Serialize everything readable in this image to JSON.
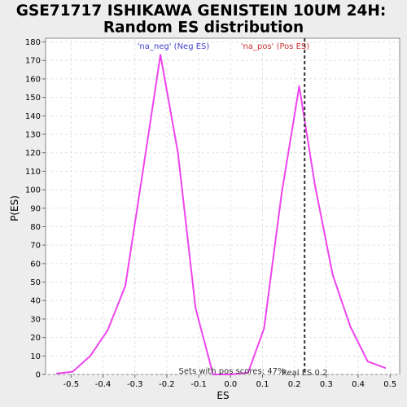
{
  "chart_data": {
    "type": "line",
    "title_line1": "GSE71717 ISHIKAWA GENISTEIN 10UM 24H:",
    "title_line2": "Random ES distribution",
    "xlabel": "ES",
    "ylabel": "P(ES)",
    "xlim": [
      -0.58,
      0.53
    ],
    "ylim": [
      0,
      182
    ],
    "xticks": [
      -0.5,
      -0.4,
      -0.3,
      -0.2,
      -0.1,
      0.0,
      0.1,
      0.2,
      0.3,
      0.4,
      0.5
    ],
    "xtick_labels": [
      "-0.5",
      "-0.4",
      "-0.3",
      "-0.2",
      "-0.1",
      "0.0",
      "0.1",
      "0.2",
      "0.3",
      "0.4",
      "0.5"
    ],
    "yticks": [
      0,
      10,
      20,
      30,
      40,
      50,
      60,
      70,
      80,
      90,
      100,
      110,
      120,
      130,
      140,
      150,
      160,
      170,
      180
    ],
    "ytick_labels": [
      "0",
      "10",
      "20",
      "30",
      "40",
      "50",
      "60",
      "70",
      "80",
      "90",
      "100",
      "110",
      "120",
      "130",
      "140",
      "150",
      "160",
      "170",
      "180"
    ],
    "grid": true,
    "legend": [
      {
        "label": "'na_neg' (Neg ES)",
        "color": "#4444cc"
      },
      {
        "label": "'na_pos' (Pos ES)",
        "color": "#cc3333"
      }
    ],
    "series": [
      {
        "color": "#ee44ee",
        "x": [
          -0.545,
          -0.495,
          -0.44,
          -0.385,
          -0.33,
          -0.275,
          -0.22,
          -0.165,
          -0.11,
          -0.055,
          0.0,
          0.055,
          0.105,
          0.16,
          0.215,
          0.265,
          0.32,
          0.375,
          0.43,
          0.485
        ],
        "y": [
          0.5,
          1.5,
          10,
          24,
          48,
          110,
          173,
          120,
          36,
          0,
          0,
          1,
          25,
          98,
          156,
          102,
          54,
          26,
          7,
          3.5
        ]
      }
    ],
    "real_es": 0.232,
    "real_es_label": "Real ES 0.2",
    "footnote": "Sets with pos scores: 47%"
  }
}
